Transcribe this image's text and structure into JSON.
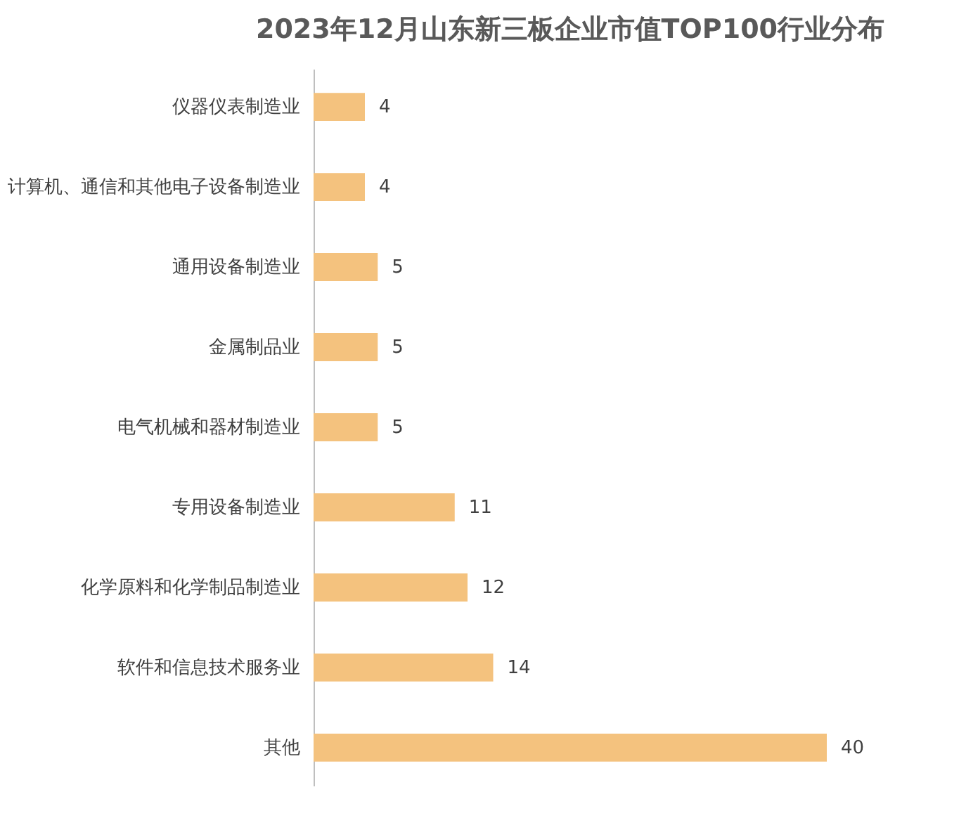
{
  "chart_data": {
    "type": "bar",
    "orientation": "horizontal",
    "title": "2023年12月山东新三板企业市值TOP100行业分布",
    "categories": [
      "仪器仪表制造业",
      "计算机、通信和其他电子设备制造业",
      "通用设备制造业",
      "金属制品业",
      "电气机械和器材制造业",
      "专用设备制造业",
      "化学原料和化学制品制造业",
      "软件和信息技术服务业",
      "其他"
    ],
    "values": [
      4,
      4,
      5,
      5,
      5,
      11,
      12,
      14,
      40
    ],
    "color": "#f4c27e",
    "data_labels": true
  }
}
